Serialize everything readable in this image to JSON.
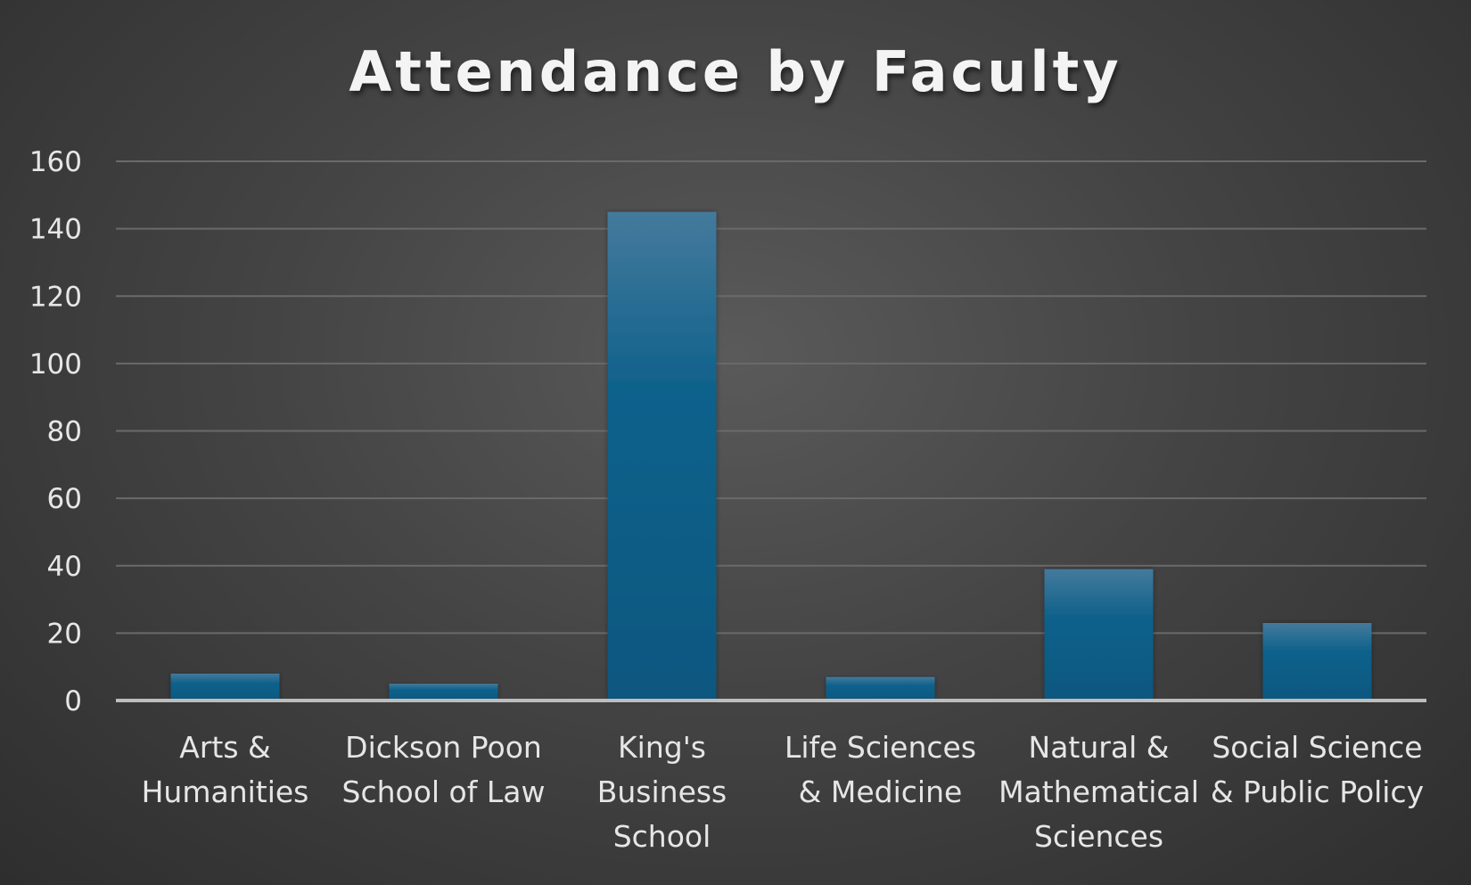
{
  "chart_data": {
    "type": "bar",
    "title": "Attendance by Faculty",
    "xlabel": "",
    "ylabel": "",
    "categories": [
      [
        "Arts &",
        "Humanities"
      ],
      [
        "Dickson Poon",
        "School of Law"
      ],
      [
        "King's",
        "Business",
        "School"
      ],
      [
        "Life Sciences",
        "& Medicine"
      ],
      [
        "Natural &",
        "Mathematical",
        "Sciences"
      ],
      [
        "Social Science",
        "& Public Policy"
      ]
    ],
    "values": [
      8,
      5,
      145,
      7,
      39,
      23
    ],
    "ylim": [
      0,
      160
    ],
    "yticks": [
      "0",
      "20",
      "40",
      "60",
      "80",
      "100",
      "120",
      "140",
      "160"
    ],
    "grid": true,
    "legend": "none",
    "colors": {
      "bar_top": "#447a9c",
      "bar_bottom": "#0a5780",
      "gridline": "#6a6a6a",
      "baseline": "#bdbdbd",
      "text": "#e6e6e6"
    }
  }
}
